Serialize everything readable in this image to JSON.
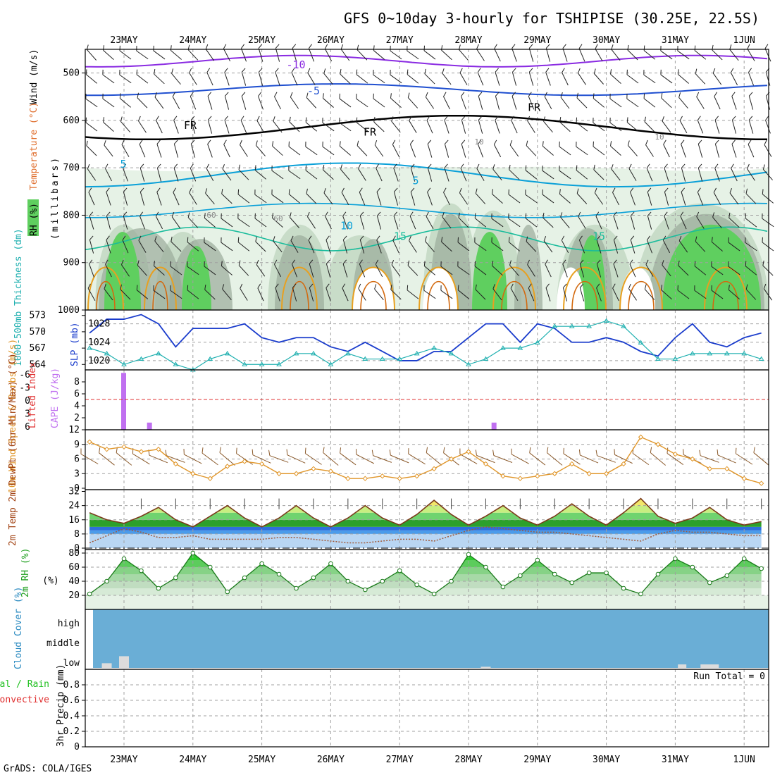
{
  "title": "GFS 0~10day 3-hourly for TSHIPISE (30.25E, 22.5S)",
  "credit": "GrADS: COLA/IGES",
  "days": [
    "23MAY",
    "24MAY",
    "25MAY",
    "26MAY",
    "27MAY",
    "28MAY",
    "29MAY",
    "30MAY",
    "31MAY",
    "1JUN"
  ],
  "colors": {
    "rh_light": "#e6f2e6",
    "rh_mid": "#c8dcc8",
    "rh_dark": "#9aab9a",
    "rh_green": "#5fcf5f",
    "temp_purple": "#8a2be2",
    "temp_blue": "#1f4fd0",
    "temp_cyan": "#0aa0d8",
    "temp_teal": "#1abc9c",
    "temp_orange": "#e8a020",
    "temp_darkorange": "#d36a10",
    "freezing": "#000000",
    "slp": "#1a3ccc",
    "thickness": "#20b0b0",
    "cape": "#c070f0",
    "lifted": "#e03030",
    "wind10": "#e0962a",
    "cloud": "#6aaed6",
    "rh2m": "#20c020"
  },
  "panels": {
    "upper": {
      "ylabel_rh": "RH (%)",
      "ylabel_temp": "Temperature (°C)",
      "ylabel_wind": "Wind (m/s)",
      "ylabel_p": "(millibars)",
      "y_ticks": [
        "500",
        "600",
        "700",
        "800",
        "900",
        "1000"
      ],
      "contour_labels": [
        "-10",
        "-5",
        "FR",
        "FR",
        "FR",
        "5",
        "5",
        "10",
        "15",
        "15",
        "10",
        "10",
        "60",
        "60"
      ]
    },
    "slp": {
      "ylabel": "SLP (mb)",
      "ylabel2": "1000-500mb Thickness (dm)",
      "left_ticks": [
        "573",
        "570",
        "567",
        "564"
      ],
      "right_ticks": [
        "1028",
        "1024",
        "1020"
      ]
    },
    "cape": {
      "ylabel": "CAPE (J/kg)",
      "ylabel2": "Lifted Index",
      "left_ticks": [
        "-6",
        "-3",
        "0",
        "3",
        "6"
      ],
      "right_ticks": [
        "8",
        "6",
        "4",
        "2"
      ]
    },
    "wind10": {
      "ylabel": "10m Wind Speed & Barbs (m/s)",
      "ticks": [
        "12",
        "9",
        "6",
        "3",
        "0"
      ]
    },
    "temp2m": {
      "ylabel": "2m Temp 2m DewPt (6hr Min/Max) (°C)",
      "ticks": [
        "32",
        "24",
        "16",
        "8",
        "0"
      ]
    },
    "rh2m": {
      "ylabel": "2m RH (%)",
      "ticks": [
        "80",
        "60",
        "40",
        "20"
      ]
    },
    "cloud": {
      "ylabel": "Cloud Cover (%)",
      "levels": [
        "high",
        "middle",
        "low"
      ]
    },
    "precip": {
      "ylabel": "3hr Precip (mm)",
      "ylabel2": "Total / Rain",
      "ylabel3": "Convective",
      "ticks": [
        "0.8",
        "0.6",
        "0.4",
        "0.2",
        "0"
      ],
      "run_total": "Run Total = 0"
    }
  },
  "chart_data": [
    {
      "type": "line",
      "name": "SLP (mb)",
      "x_unit": "days from 23MAY 00Z",
      "x": [
        -0.5,
        -0.25,
        0,
        0.25,
        0.5,
        0.75,
        1,
        1.25,
        1.5,
        1.75,
        2,
        2.25,
        2.5,
        2.75,
        3,
        3.25,
        3.5,
        3.75,
        4,
        4.25,
        4.5,
        4.75,
        5,
        5.25,
        5.5,
        5.75,
        6,
        6.25,
        6.5,
        6.75,
        7,
        7.25,
        7.5,
        7.75,
        8,
        8.25,
        8.5,
        8.75,
        9,
        9.25
      ],
      "values": [
        1026,
        1029,
        1029,
        1030,
        1028,
        1023,
        1027,
        1027,
        1027,
        1028,
        1025,
        1024,
        1025,
        1025,
        1023,
        1022,
        1024,
        1022,
        1020,
        1020,
        1022,
        1022,
        1025,
        1028,
        1028,
        1024,
        1028,
        1027,
        1024,
        1024,
        1025,
        1024,
        1022,
        1021,
        1025,
        1028,
        1024,
        1023,
        1025,
        1026
      ],
      "ylim": [
        1018,
        1031
      ]
    },
    {
      "type": "line",
      "name": "1000-500mb Thickness (dm)",
      "x": [
        -0.5,
        -0.25,
        0,
        0.25,
        0.5,
        0.75,
        1,
        1.25,
        1.5,
        1.75,
        2,
        2.25,
        2.5,
        2.75,
        3,
        3.25,
        3.5,
        3.75,
        4,
        4.25,
        4.5,
        4.75,
        5,
        5.25,
        5.5,
        5.75,
        6,
        6.25,
        6.5,
        6.75,
        7,
        7.25,
        7.5,
        7.75,
        8,
        8.25,
        8.5,
        8.75,
        9,
        9.25
      ],
      "values": [
        567,
        566,
        564,
        565,
        566,
        564,
        563,
        565,
        566,
        564,
        564,
        564,
        566,
        566,
        564,
        566,
        565,
        565,
        565,
        566,
        567,
        566,
        564,
        565,
        567,
        567,
        568,
        571,
        571,
        571,
        572,
        571,
        568,
        565,
        565,
        566,
        566,
        566,
        566,
        565
      ],
      "ylim": [
        563,
        574
      ]
    },
    {
      "type": "bar",
      "name": "CAPE (J/kg)",
      "x": [
        0,
        0.375,
        5.375
      ],
      "values": [
        9.5,
        1.2,
        1.2
      ],
      "ylim": [
        0,
        10
      ]
    },
    {
      "type": "line",
      "name": "10m Wind Speed (m/s)",
      "x": [
        -0.5,
        -0.25,
        0,
        0.25,
        0.5,
        0.75,
        1,
        1.25,
        1.5,
        1.75,
        2,
        2.25,
        2.5,
        2.75,
        3,
        3.25,
        3.5,
        3.75,
        4,
        4.25,
        4.5,
        4.75,
        5,
        5.25,
        5.5,
        5.75,
        6,
        6.25,
        6.5,
        6.75,
        7,
        7.25,
        7.5,
        7.75,
        8,
        8.25,
        8.5,
        8.75,
        9,
        9.25
      ],
      "values": [
        9.5,
        8,
        8.5,
        7.5,
        8,
        5,
        3,
        2,
        4.5,
        5.5,
        5,
        3,
        3,
        4,
        3.5,
        2,
        2,
        2.5,
        2,
        2.5,
        4,
        6,
        7.5,
        5,
        2.5,
        2,
        2.5,
        3,
        5,
        3,
        3,
        5,
        10.5,
        9,
        7,
        6,
        4,
        4,
        2,
        1
      ],
      "ylim": [
        0,
        12
      ]
    },
    {
      "type": "area",
      "name": "2m Temp (°C)",
      "x": [
        -0.5,
        -0.25,
        0,
        0.25,
        0.5,
        0.75,
        1,
        1.25,
        1.5,
        1.75,
        2,
        2.25,
        2.5,
        2.75,
        3,
        3.25,
        3.5,
        3.75,
        4,
        4.25,
        4.5,
        4.75,
        5,
        5.25,
        5.5,
        5.75,
        6,
        6.25,
        6.5,
        6.75,
        7,
        7.25,
        7.5,
        7.75,
        8,
        8.25,
        8.5,
        8.75,
        9,
        9.25
      ],
      "values": [
        20,
        16,
        14,
        18,
        23,
        16,
        12,
        18,
        24,
        17,
        12,
        17,
        24,
        17,
        12,
        17,
        24,
        17,
        13,
        19,
        27,
        19,
        13,
        18,
        24,
        17,
        13,
        18,
        25,
        18,
        13,
        20,
        28,
        18,
        14,
        17,
        23,
        16,
        13,
        15
      ],
      "ylim": [
        0,
        33
      ]
    },
    {
      "type": "line",
      "name": "2m DewPt (°C)",
      "x": [
        -0.5,
        -0.25,
        0,
        0.25,
        0.5,
        0.75,
        1,
        1.25,
        1.5,
        1.75,
        2,
        2.25,
        2.5,
        2.75,
        3,
        3.25,
        3.5,
        3.75,
        4,
        4.25,
        4.5,
        4.75,
        5,
        5.25,
        5.5,
        5.75,
        6,
        6.25,
        6.5,
        6.75,
        7,
        7.25,
        7.5,
        7.75,
        8,
        8.25,
        8.5,
        8.75,
        9,
        9.25
      ],
      "values": [
        3,
        7,
        11,
        9,
        6,
        6,
        7,
        5,
        5,
        5,
        5,
        6,
        6,
        5,
        4,
        3,
        3,
        4,
        5,
        5,
        4,
        7,
        10,
        12,
        11,
        10,
        9,
        9,
        8,
        7,
        6,
        5,
        4,
        8,
        10,
        9,
        9,
        8,
        7,
        7
      ],
      "ylim": [
        0,
        33
      ]
    },
    {
      "type": "area",
      "name": "2m RH (%)",
      "x": [
        -0.5,
        -0.25,
        0,
        0.25,
        0.5,
        0.75,
        1,
        1.25,
        1.5,
        1.75,
        2,
        2.25,
        2.5,
        2.75,
        3,
        3.25,
        3.5,
        3.75,
        4,
        4.25,
        4.5,
        4.75,
        5,
        5.25,
        5.5,
        5.75,
        6,
        6.25,
        6.5,
        6.75,
        7,
        7.25,
        7.5,
        7.75,
        8,
        8.25,
        8.5,
        8.75,
        9,
        9.25
      ],
      "values": [
        22,
        40,
        72,
        55,
        30,
        45,
        80,
        60,
        25,
        45,
        65,
        50,
        30,
        45,
        65,
        40,
        28,
        40,
        55,
        35,
        22,
        40,
        78,
        60,
        32,
        48,
        70,
        50,
        38,
        52,
        52,
        30,
        22,
        50,
        72,
        60,
        38,
        48,
        72,
        58
      ],
      "ylim": [
        15,
        85
      ]
    },
    {
      "type": "bar",
      "name": "Cloud Cover low (%)",
      "x": [
        -0.25,
        0,
        5.25,
        8.1,
        8.5
      ],
      "values": [
        8,
        20,
        2,
        6,
        6
      ],
      "ylim": [
        0,
        100
      ]
    },
    {
      "type": "line",
      "name": "3hr Precip (mm)",
      "x": [
        -0.5,
        9.3
      ],
      "values": [
        0,
        0
      ],
      "ylim": [
        0,
        1
      ]
    }
  ]
}
